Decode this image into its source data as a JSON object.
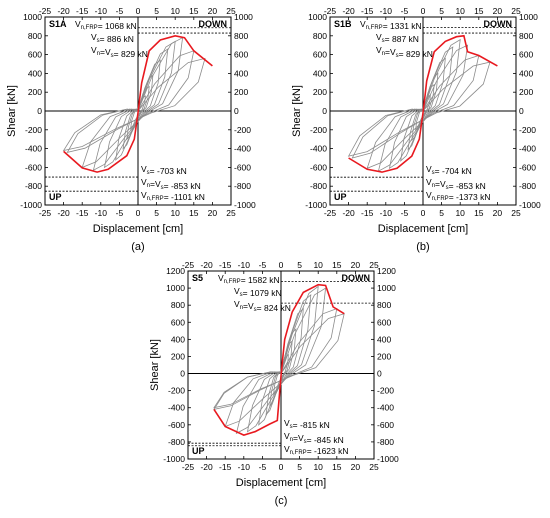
{
  "chart_data": [
    {
      "type": "line",
      "id": "S1A",
      "panel_label": "(a)",
      "xlabel": "Displacement [cm]",
      "ylabel": "Shear [kN]",
      "xlim": [
        -25,
        25
      ],
      "ylim": [
        -1000,
        1000
      ],
      "xticks": [
        -25,
        -20,
        -15,
        -10,
        -5,
        0,
        5,
        10,
        15,
        20,
        25
      ],
      "yticks": [
        -1000,
        -800,
        -600,
        -400,
        -200,
        0,
        200,
        400,
        600,
        800,
        1000
      ],
      "corner_labels": {
        "top_right": "DOWN",
        "bottom_left": "UP"
      },
      "dashed_levels": [
        886,
        829,
        -703,
        -853
      ],
      "annotations_top": [
        {
          "pre": "V",
          "sub": "n,FRP",
          "post": "= 1068 kN"
        },
        {
          "pre": "V",
          "sub": "s",
          "post": "= 886 kN"
        },
        {
          "pre": "V",
          "sub": "n",
          "mid": "=V",
          "sub2": "s",
          "post": "= 829 kN"
        }
      ],
      "annotations_bottom": [
        {
          "pre": "V",
          "sub": "s",
          "post": "= -703 kN"
        },
        {
          "pre": "V",
          "sub": "n",
          "mid": "=V",
          "sub2": "s",
          "post": "= -853 kN"
        },
        {
          "pre": "V",
          "sub": "n,FRP",
          "post": "= -1101 kN"
        }
      ],
      "envelope": {
        "name": "envelope",
        "color": "#e8191f",
        "points": [
          [
            -20,
            -430
          ],
          [
            -15,
            -605
          ],
          [
            -11,
            -650
          ],
          [
            -8,
            -620
          ],
          [
            -3,
            -475
          ],
          [
            -1,
            -300
          ],
          [
            0,
            -20
          ],
          [
            0.5,
            150
          ],
          [
            1,
            300
          ],
          [
            3,
            640
          ],
          [
            6,
            755
          ],
          [
            10,
            800
          ],
          [
            12.5,
            780
          ],
          [
            15,
            640
          ],
          [
            20,
            480
          ]
        ]
      },
      "cycles": [
        [
          2,
          160,
          -2,
          -190
        ],
        [
          3,
          260,
          -3,
          -300
        ],
        [
          4,
          380,
          -4,
          -400
        ],
        [
          6,
          540,
          -6,
          -520
        ],
        [
          8,
          660,
          -9,
          -600
        ],
        [
          10,
          740,
          -12,
          -630
        ],
        [
          12,
          780,
          -15,
          -600
        ],
        [
          15,
          640,
          -19,
          -440
        ],
        [
          18,
          560,
          -20,
          -420
        ]
      ]
    },
    {
      "type": "line",
      "id": "S1B",
      "panel_label": "(b)",
      "xlabel": "Displacement [cm]",
      "ylabel": "Shear [kN]",
      "xlim": [
        -25,
        25
      ],
      "ylim": [
        -1000,
        1000
      ],
      "xticks": [
        -25,
        -20,
        -15,
        -10,
        -5,
        0,
        5,
        10,
        15,
        20,
        25
      ],
      "yticks": [
        -1000,
        -800,
        -600,
        -400,
        -200,
        0,
        200,
        400,
        600,
        800,
        1000
      ],
      "corner_labels": {
        "top_right": "DOWN",
        "bottom_left": "UP"
      },
      "dashed_levels": [
        887,
        829,
        -704,
        -853
      ],
      "annotations_top": [
        {
          "pre": "V",
          "sub": "n,FRP",
          "post": "= 1331 kN"
        },
        {
          "pre": "V",
          "sub": "s",
          "post": "= 887 kN"
        },
        {
          "pre": "V",
          "sub": "n",
          "mid": "=V",
          "sub2": "s",
          "post": "= 829 kN"
        }
      ],
      "annotations_bottom": [
        {
          "pre": "V",
          "sub": "s",
          "post": "= -704 kN"
        },
        {
          "pre": "V",
          "sub": "n",
          "mid": "=V",
          "sub2": "s",
          "post": "= -853 kN"
        },
        {
          "pre": "V",
          "sub": "n,FRP",
          "post": "= -1373 kN"
        }
      ],
      "envelope": {
        "name": "envelope",
        "color": "#e8191f",
        "points": [
          [
            -20,
            -500
          ],
          [
            -15,
            -620
          ],
          [
            -11,
            -650
          ],
          [
            -7,
            -610
          ],
          [
            -3,
            -480
          ],
          [
            -1,
            -300
          ],
          [
            0,
            -20
          ],
          [
            0.5,
            150
          ],
          [
            1,
            320
          ],
          [
            3,
            630
          ],
          [
            6,
            740
          ],
          [
            9,
            790
          ],
          [
            11,
            800
          ],
          [
            12,
            630
          ],
          [
            15,
            590
          ],
          [
            20,
            480
          ]
        ]
      },
      "cycles": [
        [
          2,
          170,
          -2,
          -200
        ],
        [
          3,
          280,
          -3,
          -310
        ],
        [
          4,
          400,
          -4,
          -410
        ],
        [
          6,
          560,
          -6,
          -530
        ],
        [
          8,
          680,
          -9,
          -610
        ],
        [
          10,
          760,
          -12,
          -640
        ],
        [
          12,
          700,
          -15,
          -610
        ],
        [
          15,
          590,
          -19,
          -500
        ],
        [
          18,
          520,
          -20,
          -480
        ]
      ]
    },
    {
      "type": "line",
      "id": "S5",
      "panel_label": "(c)",
      "xlabel": "Displacement [cm]",
      "ylabel": "Shear [kN]",
      "xlim": [
        -25,
        25
      ],
      "ylim": [
        -1000,
        1200
      ],
      "xticks": [
        -25,
        -20,
        -15,
        -10,
        -5,
        0,
        5,
        10,
        15,
        20,
        25
      ],
      "yticks": [
        -1000,
        -800,
        -600,
        -400,
        -200,
        0,
        200,
        400,
        600,
        800,
        1000,
        1200
      ],
      "corner_labels": {
        "top_right": "DOWN",
        "bottom_left": "UP"
      },
      "dashed_levels": [
        1079,
        824,
        -815,
        -845
      ],
      "annotations_top": [
        {
          "pre": "V",
          "sub": "n,FRP",
          "post": "= 1582 kN"
        },
        {
          "pre": "V",
          "sub": "s",
          "post": "= 1079 kN"
        },
        {
          "pre": "V",
          "sub": "n",
          "mid": "=V",
          "sub2": "s",
          "post": "= 824 kN"
        }
      ],
      "annotations_bottom": [
        {
          "pre": "V",
          "sub": "s",
          "post": "= -815 kN"
        },
        {
          "pre": "V",
          "sub": "n",
          "mid": "=V",
          "sub2": "s",
          "post": "= -845 kN"
        },
        {
          "pre": "V",
          "sub": "n,FRP",
          "post": "= -1623 kN"
        }
      ],
      "envelope": {
        "name": "envelope",
        "color": "#e8191f",
        "points": [
          [
            -18,
            -420
          ],
          [
            -15,
            -620
          ],
          [
            -10,
            -720
          ],
          [
            -7,
            -680
          ],
          [
            -3,
            -590
          ],
          [
            -1,
            -550
          ],
          [
            0,
            -30
          ],
          [
            0.5,
            200
          ],
          [
            1,
            400
          ],
          [
            3,
            720
          ],
          [
            6,
            950
          ],
          [
            10,
            1040
          ],
          [
            12,
            1030
          ],
          [
            14,
            780
          ],
          [
            17,
            700
          ]
        ]
      },
      "cycles": [
        [
          2,
          220,
          -2,
          -240
        ],
        [
          3,
          380,
          -3,
          -380
        ],
        [
          4,
          520,
          -4,
          -480
        ],
        [
          6,
          760,
          -6,
          -600
        ],
        [
          8,
          920,
          -9,
          -680
        ],
        [
          10,
          1020,
          -12,
          -700
        ],
        [
          12,
          1000,
          -15,
          -620
        ],
        [
          15,
          760,
          -18,
          -420
        ],
        [
          17,
          700,
          -18,
          -400
        ]
      ]
    }
  ]
}
